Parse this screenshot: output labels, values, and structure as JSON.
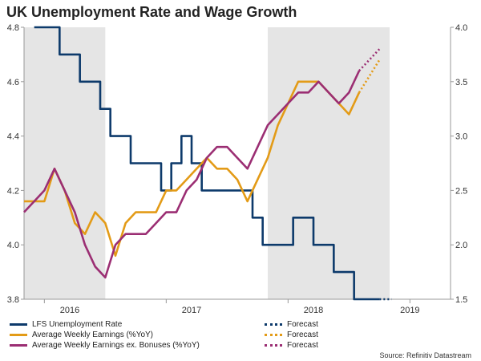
{
  "title": "UK Unemployment Rate and Wage Growth",
  "source": "Source: Refinitiv Datastream",
  "colors": {
    "unemployment": "#0d3a6b",
    "earnings": "#e39b17",
    "earnings_ex_bonus": "#9b2e73",
    "shade": "#e5e5e5"
  },
  "chart_data": {
    "type": "line",
    "x_axis": {
      "start": "2015-11",
      "end": "2019-05",
      "tick_labels": [
        "2016",
        "2017",
        "2018",
        "2019"
      ],
      "tick_label_months": [
        4.5,
        16.5,
        28.5,
        38
      ]
    },
    "y_axis_left": {
      "range": [
        3.8,
        4.8
      ],
      "ticks": [
        3.8,
        4.0,
        4.2,
        4.4,
        4.6,
        4.8
      ],
      "tick_labels": [
        "3.8",
        "4.0",
        "4.2",
        "4.4",
        "4.6",
        "4.8"
      ]
    },
    "y_axis_right": {
      "range": [
        1.5,
        4.0
      ],
      "ticks": [
        1.5,
        2.0,
        2.5,
        3.0,
        3.5,
        4.0
      ],
      "tick_labels": [
        "1.5",
        "2.0",
        "2.5",
        "3.0",
        "3.5",
        "4.0"
      ]
    },
    "shaded_periods": [
      {
        "start_month": 0,
        "end_month": 8
      },
      {
        "start_month": 24,
        "end_month": 36
      }
    ],
    "series": [
      {
        "name": "LFS Unemployment Rate",
        "axis": "left",
        "color_key": "unemployment",
        "start_month": 1,
        "values": [
          4.8,
          4.8,
          4.8,
          4.7,
          4.7,
          4.6,
          4.6,
          4.5,
          4.4,
          4.4,
          4.3,
          4.3,
          4.3,
          4.2,
          4.3,
          4.4,
          4.3,
          4.2,
          4.2,
          4.2,
          4.2,
          4.2,
          4.1,
          4.0,
          4.0,
          4.0,
          4.1,
          4.1,
          4.0,
          4.0,
          3.9,
          3.9,
          3.8,
          3.8,
          3.8
        ],
        "forecast": [
          3.8,
          3.8
        ]
      },
      {
        "name": "Average Weekly Earnings (%YoY)",
        "axis": "right",
        "color_key": "earnings",
        "start_month": 0,
        "values": [
          2.4,
          2.4,
          2.4,
          2.7,
          2.5,
          2.2,
          2.1,
          2.3,
          2.2,
          1.9,
          2.2,
          2.3,
          2.3,
          2.3,
          2.5,
          2.5,
          2.6,
          2.7,
          2.8,
          2.7,
          2.7,
          2.6,
          2.4,
          2.6,
          2.8,
          3.1,
          3.3,
          3.5,
          3.5,
          3.5,
          3.4,
          3.3,
          3.2,
          3.4
        ],
        "forecast": [
          3.4,
          3.7
        ]
      },
      {
        "name": "Average Weekly Earnings ex. Bonuses (%YoY)",
        "axis": "right",
        "color_key": "earnings_ex_bonus",
        "start_month": 0,
        "values": [
          2.3,
          2.4,
          2.5,
          2.7,
          2.5,
          2.3,
          2.0,
          1.8,
          1.7,
          2.0,
          2.1,
          2.1,
          2.1,
          2.2,
          2.3,
          2.3,
          2.5,
          2.6,
          2.8,
          2.9,
          2.9,
          2.8,
          2.7,
          2.9,
          3.1,
          3.2,
          3.3,
          3.4,
          3.4,
          3.5,
          3.4,
          3.3,
          3.4,
          3.6
        ],
        "forecast": [
          3.6,
          3.8
        ]
      }
    ],
    "legend": {
      "position": "bottom",
      "entries": [
        {
          "label": "LFS Unemployment Rate",
          "style": "solid",
          "color_key": "unemployment"
        },
        {
          "label": "Forecast",
          "style": "dotted",
          "color_key": "unemployment"
        },
        {
          "label": "Average Weekly Earnings (%YoY)",
          "style": "solid",
          "color_key": "earnings"
        },
        {
          "label": "Forecast",
          "style": "dotted",
          "color_key": "earnings"
        },
        {
          "label": "Average Weekly Earnings ex. Bonuses (%YoY)",
          "style": "solid",
          "color_key": "earnings_ex_bonus"
        },
        {
          "label": "Forecast",
          "style": "dotted",
          "color_key": "earnings_ex_bonus"
        }
      ]
    }
  }
}
